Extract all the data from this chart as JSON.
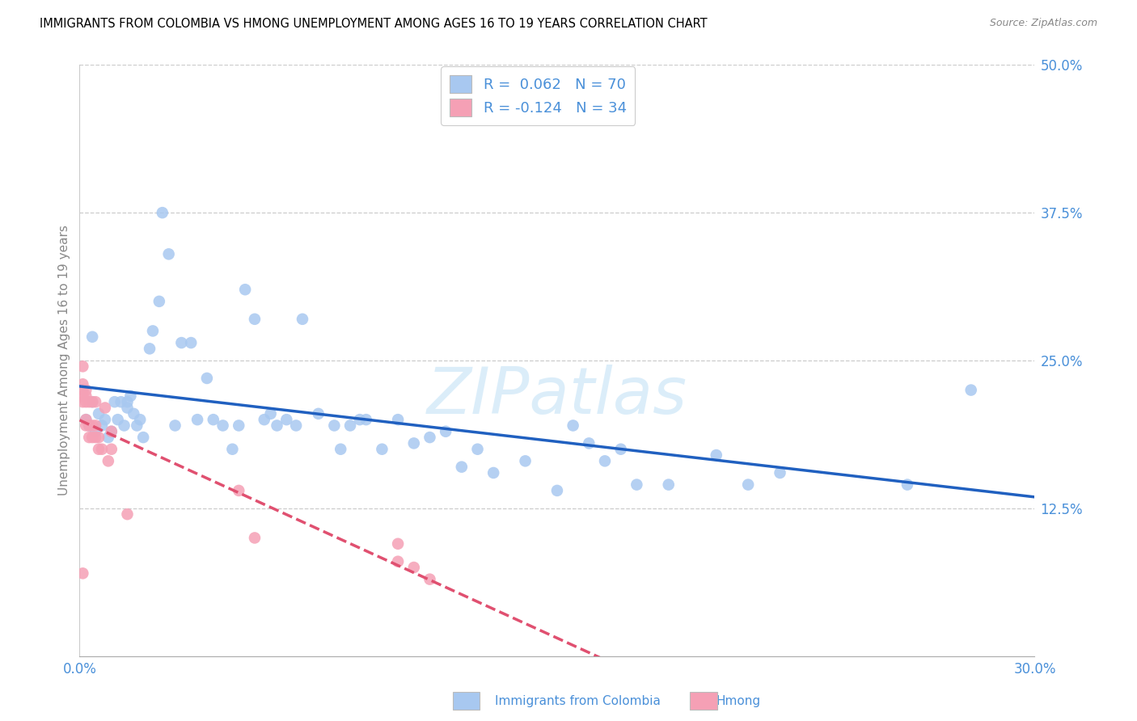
{
  "title": "IMMIGRANTS FROM COLOMBIA VS HMONG UNEMPLOYMENT AMONG AGES 16 TO 19 YEARS CORRELATION CHART",
  "source": "Source: ZipAtlas.com",
  "ylabel": "Unemployment Among Ages 16 to 19 years",
  "xlim": [
    0.0,
    0.3
  ],
  "ylim": [
    0.0,
    0.5
  ],
  "xticks": [
    0.0,
    0.05,
    0.1,
    0.15,
    0.2,
    0.25,
    0.3
  ],
  "xticklabels": [
    "0.0%",
    "",
    "",
    "",
    "",
    "",
    "30.0%"
  ],
  "colombia_R": 0.062,
  "colombia_N": 70,
  "hmong_R": -0.124,
  "hmong_N": 34,
  "colombia_color": "#a8c8f0",
  "colombia_line_color": "#2060c0",
  "hmong_color": "#f5a0b5",
  "hmong_line_color": "#e05070",
  "watermark_color": "#d0e8f8",
  "colombia_x": [
    0.002,
    0.003,
    0.004,
    0.004,
    0.005,
    0.006,
    0.007,
    0.008,
    0.009,
    0.01,
    0.011,
    0.012,
    0.013,
    0.014,
    0.015,
    0.015,
    0.016,
    0.017,
    0.018,
    0.019,
    0.02,
    0.022,
    0.023,
    0.025,
    0.026,
    0.028,
    0.03,
    0.032,
    0.035,
    0.037,
    0.04,
    0.042,
    0.045,
    0.048,
    0.05,
    0.052,
    0.055,
    0.058,
    0.06,
    0.062,
    0.065,
    0.068,
    0.07,
    0.075,
    0.08,
    0.082,
    0.085,
    0.088,
    0.09,
    0.095,
    0.1,
    0.105,
    0.11,
    0.115,
    0.12,
    0.125,
    0.13,
    0.14,
    0.15,
    0.155,
    0.16,
    0.165,
    0.17,
    0.175,
    0.185,
    0.2,
    0.21,
    0.22,
    0.26,
    0.28
  ],
  "colombia_y": [
    0.2,
    0.195,
    0.215,
    0.27,
    0.19,
    0.205,
    0.195,
    0.2,
    0.185,
    0.19,
    0.215,
    0.2,
    0.215,
    0.195,
    0.21,
    0.215,
    0.22,
    0.205,
    0.195,
    0.2,
    0.185,
    0.26,
    0.275,
    0.3,
    0.375,
    0.34,
    0.195,
    0.265,
    0.265,
    0.2,
    0.235,
    0.2,
    0.195,
    0.175,
    0.195,
    0.31,
    0.285,
    0.2,
    0.205,
    0.195,
    0.2,
    0.195,
    0.285,
    0.205,
    0.195,
    0.175,
    0.195,
    0.2,
    0.2,
    0.175,
    0.2,
    0.18,
    0.185,
    0.19,
    0.16,
    0.175,
    0.155,
    0.165,
    0.14,
    0.195,
    0.18,
    0.165,
    0.175,
    0.145,
    0.145,
    0.17,
    0.145,
    0.155,
    0.145,
    0.225
  ],
  "hmong_x": [
    0.001,
    0.001,
    0.001,
    0.001,
    0.001,
    0.001,
    0.002,
    0.002,
    0.002,
    0.002,
    0.002,
    0.003,
    0.003,
    0.003,
    0.004,
    0.004,
    0.004,
    0.005,
    0.005,
    0.005,
    0.006,
    0.006,
    0.007,
    0.008,
    0.009,
    0.01,
    0.01,
    0.015,
    0.05,
    0.055,
    0.1,
    0.1,
    0.105,
    0.11
  ],
  "hmong_y": [
    0.215,
    0.22,
    0.225,
    0.23,
    0.245,
    0.07,
    0.195,
    0.2,
    0.215,
    0.22,
    0.225,
    0.185,
    0.195,
    0.215,
    0.185,
    0.195,
    0.215,
    0.185,
    0.195,
    0.215,
    0.175,
    0.185,
    0.175,
    0.21,
    0.165,
    0.175,
    0.19,
    0.12,
    0.14,
    0.1,
    0.08,
    0.095,
    0.075,
    0.065
  ]
}
